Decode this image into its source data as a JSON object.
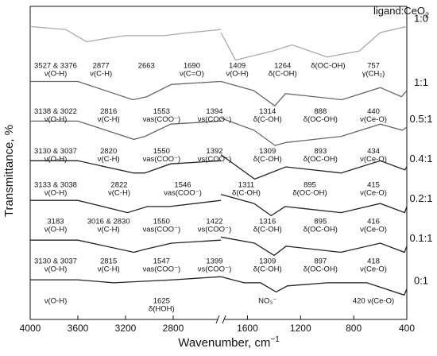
{
  "chart_data": {
    "type": "line",
    "xlabel": "Wavenumber, cm",
    "xlabel_superscript": "−1",
    "ylabel": "Transmittance, %",
    "legend_title": "ligand:CeO",
    "legend_title_subscript": "2",
    "x_axis_reversed": true,
    "x_axis_break": [
      1800,
      2400
    ],
    "xlim_left": [
      4000,
      2400
    ],
    "xlim_right": [
      1800,
      400
    ],
    "x_ticks": [
      "4000",
      "3600",
      "3200",
      "2800",
      "1600",
      "1200",
      "800",
      "400"
    ],
    "series": [
      {
        "name": "1:0",
        "x": [
          4000,
          3700,
          3527,
          3376,
          3200,
          2877,
          2663,
          2400,
          1800,
          1690,
          1409,
          1264,
          1000,
          757,
          600,
          400
        ],
        "y": [
          96,
          95,
          91,
          92,
          93,
          93,
          94,
          95,
          94,
          85,
          88,
          90,
          86,
          88,
          94,
          96
        ]
      },
      {
        "name": "1:1",
        "x": [
          4000,
          3600,
          3138,
          3022,
          2816,
          2400,
          1800,
          1553,
          1394,
          1314,
          888,
          600,
          440,
          400
        ],
        "y": [
          78,
          78,
          72,
          73,
          77,
          78,
          78,
          75,
          70,
          74,
          72,
          76,
          73,
          75
        ]
      },
      {
        "name": "0.5:1",
        "x": [
          4000,
          3600,
          3130,
          3037,
          2820,
          2400,
          1800,
          1550,
          1392,
          1309,
          893,
          600,
          434,
          400
        ],
        "y": [
          65,
          65,
          59,
          60,
          64,
          65,
          66,
          62,
          57,
          58,
          60,
          64,
          62,
          63
        ]
      },
      {
        "name": "0.4:1",
        "x": [
          4000,
          3600,
          3133,
          3038,
          2822,
          2400,
          1800,
          1546,
          1311,
          895,
          600,
          415,
          400
        ],
        "y": [
          52,
          52,
          48,
          48,
          51,
          52,
          54,
          46,
          50,
          48,
          52,
          49,
          50
        ]
      },
      {
        "name": "0.2:1",
        "x": [
          4000,
          3600,
          3183,
          3016,
          2830,
          2400,
          1800,
          1550,
          1422,
          1316,
          895,
          600,
          416,
          400
        ],
        "y": [
          39,
          39,
          35,
          37,
          37,
          39,
          41,
          38,
          34,
          37,
          35,
          38,
          35,
          37
        ]
      },
      {
        "name": "0.1:1",
        "x": [
          4000,
          3600,
          3130,
          3037,
          2815,
          2400,
          1800,
          1547,
          1399,
          1309,
          897,
          600,
          418,
          400
        ],
        "y": [
          26,
          26,
          22,
          23,
          25,
          26,
          27,
          25,
          21,
          24,
          22,
          25,
          22,
          24
        ]
      },
      {
        "name": "0:1",
        "x": [
          4000,
          3600,
          3300,
          2800,
          2400,
          1800,
          1625,
          1500,
          1384,
          1300,
          1000,
          700,
          420,
          400
        ],
        "y": [
          13,
          13,
          12,
          13,
          14,
          14,
          12,
          12,
          9,
          11,
          12,
          12,
          8,
          10
        ]
      }
    ],
    "annotations": [
      {
        "text": "3527 & 3376",
        "series": "1:0"
      },
      {
        "text": "ν(O-H)",
        "series": "1:0"
      },
      {
        "text": "2877",
        "series": "1:0"
      },
      {
        "text": "ν(C-H)",
        "series": "1:0"
      },
      {
        "text": "2663",
        "series": "1:0"
      },
      {
        "text": "1690",
        "series": "1:0"
      },
      {
        "text": "ν(C=O)",
        "series": "1:0"
      },
      {
        "text": "1409",
        "series": "1:0"
      },
      {
        "text": "ν(O-H)",
        "series": "1:0"
      },
      {
        "text": "1264",
        "series": "1:0"
      },
      {
        "text": "δ(C-OH)",
        "series": "1:0"
      },
      {
        "text": "δ(OC-OH)",
        "series": "1:0"
      },
      {
        "text": "757",
        "series": "1:0"
      },
      {
        "text": "γ(CH₂)",
        "series": "1:0"
      },
      {
        "text": "3138 & 3022",
        "series": "1:1"
      },
      {
        "text": "ν(O-H)",
        "series": "1:1"
      },
      {
        "text": "2816",
        "series": "1:1"
      },
      {
        "text": "ν(C-H)",
        "series": "1:1"
      },
      {
        "text": "1553",
        "series": "1:1"
      },
      {
        "text": "νas(COO⁻)",
        "series": "1:1"
      },
      {
        "text": "1394",
        "series": "1:1"
      },
      {
        "text": "νs(COO⁻)",
        "series": "1:1"
      },
      {
        "text": "1314",
        "series": "1:1"
      },
      {
        "text": "δ(C-OH)",
        "series": "1:1"
      },
      {
        "text": "888",
        "series": "1:1"
      },
      {
        "text": "δ(OC-OH)",
        "series": "1:1"
      },
      {
        "text": "440",
        "series": "1:1"
      },
      {
        "text": "ν(Ce-O)",
        "series": "1:1"
      },
      {
        "text": "3130 & 3037",
        "series": "0.5:1"
      },
      {
        "text": "ν(O-H)",
        "series": "0.5:1"
      },
      {
        "text": "2820",
        "series": "0.5:1"
      },
      {
        "text": "ν(C-H)",
        "series": "0.5:1"
      },
      {
        "text": "1550",
        "series": "0.5:1"
      },
      {
        "text": "νas(COO⁻)",
        "series": "0.5:1"
      },
      {
        "text": "1392",
        "series": "0.5:1"
      },
      {
        "text": "νs(COO⁻)",
        "series": "0.5:1"
      },
      {
        "text": "1309",
        "series": "0.5:1"
      },
      {
        "text": "δ(C-OH)",
        "series": "0.5:1"
      },
      {
        "text": "893",
        "series": "0.5:1"
      },
      {
        "text": "δ(OC-OH)",
        "series": "0.5:1"
      },
      {
        "text": "434",
        "series": "0.5:1"
      },
      {
        "text": "ν(Ce-O)",
        "series": "0.5:1"
      },
      {
        "text": "3133 & 3038",
        "series": "0.4:1"
      },
      {
        "text": "ν(O-H)",
        "series": "0.4:1"
      },
      {
        "text": "2822",
        "series": "0.4:1"
      },
      {
        "text": "ν(C-H)",
        "series": "0.4:1"
      },
      {
        "text": "1546",
        "series": "0.4:1"
      },
      {
        "text": "νas(COO⁻)",
        "series": "0.4:1"
      },
      {
        "text": "1311",
        "series": "0.4:1"
      },
      {
        "text": "δ(C-OH)",
        "series": "0.4:1"
      },
      {
        "text": "895",
        "series": "0.4:1"
      },
      {
        "text": "δ(OC-OH)",
        "series": "0.4:1"
      },
      {
        "text": "415",
        "series": "0.4:1"
      },
      {
        "text": "ν(Ce-O)",
        "series": "0.4:1"
      },
      {
        "text": "3183",
        "series": "0.2:1"
      },
      {
        "text": "ν(O-H)",
        "series": "0.2:1"
      },
      {
        "text": "3016 & 2830",
        "series": "0.2:1"
      },
      {
        "text": "ν(C-H)",
        "series": "0.2:1"
      },
      {
        "text": "1550",
        "series": "0.2:1"
      },
      {
        "text": "νas(COO⁻)",
        "series": "0.2:1"
      },
      {
        "text": "1422",
        "series": "0.2:1"
      },
      {
        "text": "νs(COO⁻)",
        "series": "0.2:1"
      },
      {
        "text": "1316",
        "series": "0.2:1"
      },
      {
        "text": "δ(C-OH)",
        "series": "0.2:1"
      },
      {
        "text": "895",
        "series": "0.2:1"
      },
      {
        "text": "δ(OC-OH)",
        "series": "0.2:1"
      },
      {
        "text": "416",
        "series": "0.2:1"
      },
      {
        "text": "ν(Ce-O)",
        "series": "0.2:1"
      },
      {
        "text": "3130 & 3037",
        "series": "0.1:1"
      },
      {
        "text": "ν(O-H)",
        "series": "0.1:1"
      },
      {
        "text": "2815",
        "series": "0.1:1"
      },
      {
        "text": "ν(C-H)",
        "series": "0.1:1"
      },
      {
        "text": "1547",
        "series": "0.1:1"
      },
      {
        "text": "νas(COO⁻)",
        "series": "0.1:1"
      },
      {
        "text": "1399",
        "series": "0.1:1"
      },
      {
        "text": "νs(COO⁻)",
        "series": "0.1:1"
      },
      {
        "text": "1309",
        "series": "0.1:1"
      },
      {
        "text": "δ(C-OH)",
        "series": "0.1:1"
      },
      {
        "text": "897",
        "series": "0.1:1"
      },
      {
        "text": "δ(OC-OH)",
        "series": "0.1:1"
      },
      {
        "text": "418",
        "series": "0.1:1"
      },
      {
        "text": "ν(Ce-O)",
        "series": "0.1:1"
      },
      {
        "text": "ν(O-H)",
        "series": "0:1"
      },
      {
        "text": "1625",
        "series": "0:1"
      },
      {
        "text": "δ(HOH)",
        "series": "0:1"
      },
      {
        "text": "NO₃⁻",
        "series": "0:1"
      },
      {
        "text": "420 ν(Ce-O)",
        "series": "0:1"
      }
    ],
    "grid": false,
    "legend_placement": "top-right, ratio labels at right end of each trace"
  },
  "colors": {
    "light": "#aaaaaa",
    "mid": "#666666",
    "dark": "#222222"
  }
}
